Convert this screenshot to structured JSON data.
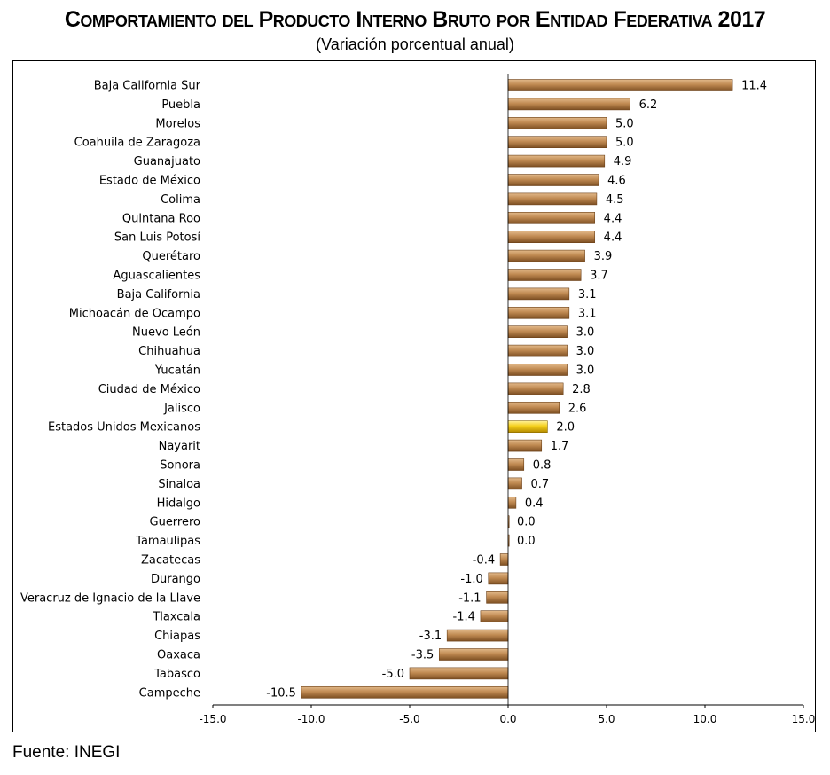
{
  "title": "Comportamiento del Producto Interno Bruto por Entidad Federativa 2017",
  "subtitle": "(Variación porcentual anual)",
  "source": "Fuente: INEGI",
  "colors": {
    "bar": "#b8844f",
    "highlight": "#f2c200",
    "axis": "#000000"
  },
  "chart_data": {
    "type": "bar",
    "orientation": "horizontal",
    "categories": [
      "Baja California Sur",
      "Puebla",
      "Morelos",
      "Coahuila de Zaragoza",
      "Guanajuato",
      "Estado de México",
      "Colima",
      "Quintana Roo",
      "San Luis Potosí",
      "Querétaro",
      "Aguascalientes",
      "Baja California",
      "Michoacán de Ocampo",
      "Nuevo León",
      "Chihuahua",
      "Yucatán",
      "Ciudad de México",
      "Jalisco",
      "Estados Unidos Mexicanos",
      "Nayarit",
      "Sonora",
      "Sinaloa",
      "Hidalgo",
      "Guerrero",
      "Tamaulipas",
      "Zacatecas",
      "Durango",
      "Veracruz de Ignacio de la Llave",
      "Tlaxcala",
      "Chiapas",
      "Oaxaca",
      "Tabasco",
      "Campeche"
    ],
    "values": [
      11.4,
      6.2,
      5.0,
      5.0,
      4.9,
      4.6,
      4.5,
      4.4,
      4.4,
      3.9,
      3.7,
      3.1,
      3.1,
      3.0,
      3.0,
      3.0,
      2.8,
      2.6,
      2.0,
      1.7,
      0.8,
      0.7,
      0.4,
      0.0,
      0.0,
      -0.4,
      -1.0,
      -1.1,
      -1.4,
      -3.1,
      -3.5,
      -5.0,
      -10.5
    ],
    "value_labels": [
      "11.4",
      "6.2",
      "5.0",
      "5.0",
      "4.9",
      "4.6",
      "4.5",
      "4.4",
      "4.4",
      "3.9",
      "3.7",
      "3.1",
      "3.1",
      "3.0",
      "3.0",
      "3.0",
      "2.8",
      "2.6",
      "2.0",
      "1.7",
      "0.8",
      "0.7",
      "0.4",
      "0.0",
      "0.0",
      "-0.4",
      "-1.0",
      "-1.1",
      "-1.4",
      "-3.1",
      "-3.5",
      "-5.0",
      "-10.5"
    ],
    "highlight_category": "Estados Unidos Mexicanos",
    "xlim": [
      -15,
      15
    ],
    "xticks": [
      "-15.0",
      "-10.0",
      "-5.0",
      "0.0",
      "5.0",
      "10.0",
      "15.0"
    ],
    "grid": false,
    "legend": "none"
  }
}
